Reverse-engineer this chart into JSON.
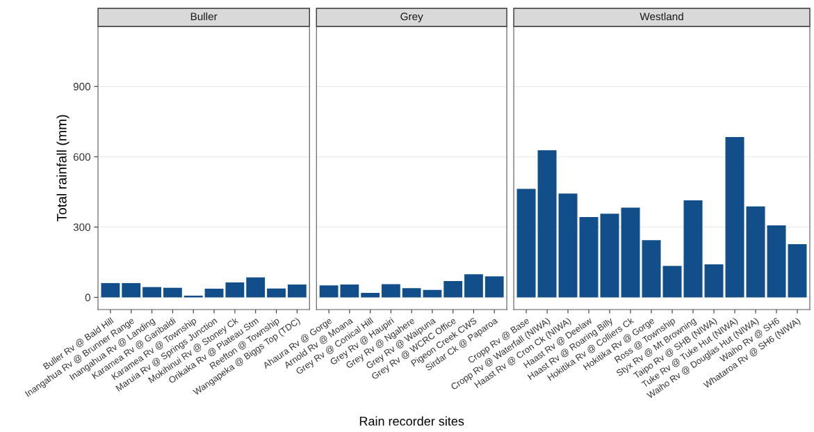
{
  "chart_data": [
    {
      "type": "bar",
      "title": "Buller",
      "ylabel": "Total rainfall (mm)",
      "categories": [
        "Buller Rv @ Bald Hill",
        "Inangahua Rv @ Brunner Range",
        "Inangahua Rv @ Landing",
        "Karamea Rv @ Garibaldi",
        "Karamea Rv @ Township",
        "Maruia Rv @ Springs Junction",
        "Mokihinui Rv @ Stoney Ck",
        "Orikaka Rv @ Plateau Stm",
        "Reefton @ Township",
        "Wangapeka @ Biggs Top (TDC)"
      ],
      "values": [
        61,
        61,
        44,
        41,
        7,
        37,
        64,
        85,
        38,
        55
      ],
      "color": "#114e8a",
      "ylim": [
        -52,
        1156
      ],
      "yticks": [
        0,
        300,
        600,
        900
      ],
      "grid": "y"
    },
    {
      "type": "bar",
      "title": "Grey",
      "xlabel": "Rain recorder sites",
      "categories": [
        "Ahaura Rv @ Gorge",
        "Arnold Rv @ Moana",
        "Grey Rv @ Conical Hill",
        "Grey Rv @ Haupiri",
        "Grey Rv @ Ngahere",
        "Grey Rv @ Waipuna",
        "Grey Rv @ WCRC Office",
        "Pigeon Creek CWS",
        "Sirdar Ck @ Paparoa"
      ],
      "values": [
        51,
        55,
        19,
        56,
        39,
        32,
        70,
        99,
        90
      ],
      "color": "#114e8a",
      "ylim": [
        -52,
        1156
      ],
      "yticks": [
        0,
        300,
        600,
        900
      ],
      "grid": "y",
      "tick_labels": "x"
    },
    {
      "type": "bar",
      "title": "Westland",
      "categories": [
        "Cropp Rv @ Base",
        "Cropp Rv @ Waterfall (NIWA)",
        "Haast Rv @ Cron Ck (NIWA)",
        "Haast Rv @ Deelaw",
        "Haast Rv @ Roaring Billy",
        "Hokitika Rv @ Colliers Ck",
        "Hokitika Rv @ Gorge",
        "Ross @ Township",
        "Styx Rv @ Mt Browning",
        "Taipo Rv @ SHB (NIWA)",
        "Tuke Rv @ Tuke Hut (NIWA)",
        "Waiho Rv @ Douglas Hut (NIWA)",
        "Waiho Rv @ SH6",
        "Whataroa Rv @ SH6 (NIWA)"
      ],
      "values": [
        463,
        628,
        443,
        343,
        357,
        383,
        244,
        134,
        414,
        141,
        684,
        388,
        307,
        227
      ],
      "color": "#114e8a",
      "ylim": [
        -52,
        1156
      ],
      "yticks": [
        0,
        300,
        600,
        900
      ],
      "grid": "y",
      "tick_labels": "x"
    }
  ]
}
